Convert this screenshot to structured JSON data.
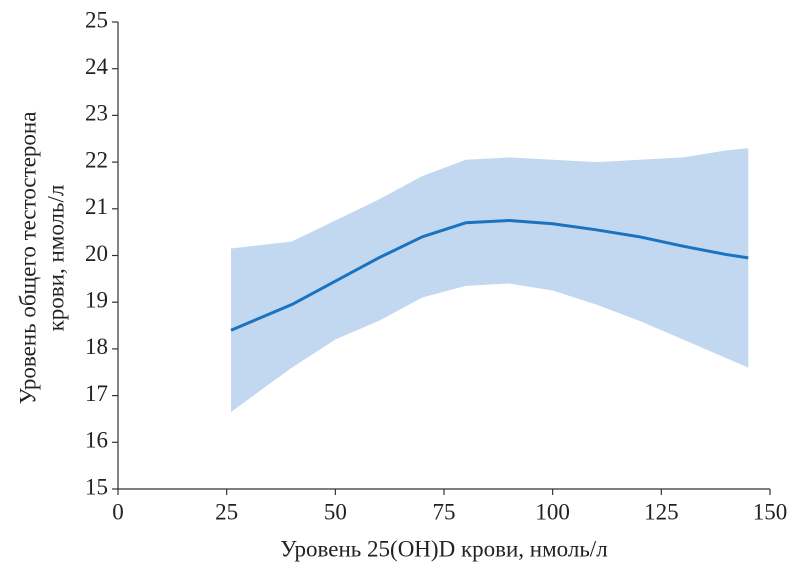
{
  "chart_data": {
    "type": "line_band",
    "xlabel": "Уровень 25(OH)D крови, нмоль/л",
    "ylabel": [
      "Уровень общего тестостерона",
      "крови, нмоль/л"
    ],
    "x": [
      26,
      40,
      50,
      60,
      70,
      80,
      90,
      100,
      110,
      120,
      130,
      140,
      145
    ],
    "values": [
      18.4,
      18.95,
      19.45,
      19.95,
      20.4,
      20.7,
      20.75,
      20.68,
      20.55,
      20.4,
      20.2,
      20.02,
      19.95
    ],
    "lower": [
      16.65,
      17.6,
      18.2,
      18.6,
      19.1,
      19.35,
      19.4,
      19.25,
      18.95,
      18.6,
      18.2,
      17.8,
      17.6
    ],
    "upper": [
      20.15,
      20.3,
      20.75,
      21.2,
      21.7,
      22.05,
      22.1,
      22.05,
      22.0,
      22.05,
      22.1,
      22.25,
      22.3
    ],
    "color": "#1a73c0",
    "band_color": "#c2d7f0",
    "xlim": [
      0,
      150
    ],
    "xticks": [
      0,
      25,
      50,
      75,
      100,
      125,
      150
    ],
    "ylim": [
      15,
      25
    ],
    "yticks": [
      15,
      16,
      17,
      18,
      19,
      20,
      21,
      22,
      23,
      24,
      25
    ]
  }
}
